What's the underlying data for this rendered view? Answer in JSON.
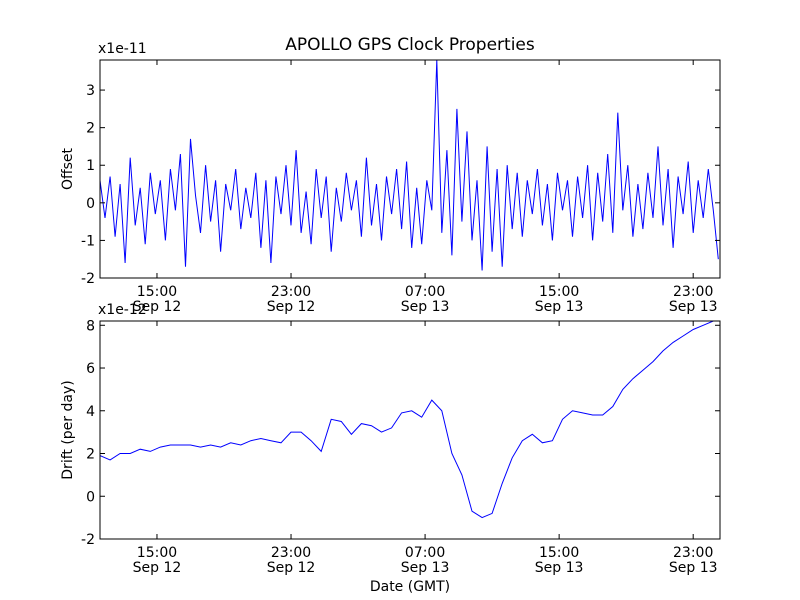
{
  "figure": {
    "title": "APOLLO GPS Clock Properties",
    "line_color": "#0000ff"
  },
  "chart_data": [
    {
      "type": "line",
      "ylabel": "Offset",
      "xlabel": "",
      "multiplier": "x1e-11",
      "ylim": [
        -2,
        3.8
      ],
      "yticks": [
        -2,
        -1,
        0,
        1,
        2,
        3
      ],
      "x_unit": "hours since Sep 12 00:00 GMT",
      "xlim": [
        11.6,
        48.6
      ],
      "xticks": [
        {
          "x": 15,
          "time": "15:00",
          "date": "Sep 12"
        },
        {
          "x": 23,
          "time": "23:00",
          "date": "Sep 12"
        },
        {
          "x": 31,
          "time": "07:00",
          "date": "Sep 13"
        },
        {
          "x": 39,
          "time": "15:00",
          "date": "Sep 13"
        },
        {
          "x": 47,
          "time": "23:00",
          "date": "Sep 13"
        }
      ],
      "series": [
        {
          "x": [
            11.6,
            11.9,
            12.2,
            12.5,
            12.8,
            13.1,
            13.4,
            13.7,
            14.0,
            14.3,
            14.6,
            14.9,
            15.2,
            15.5,
            15.8,
            16.1,
            16.4,
            16.7,
            17.0,
            17.3,
            17.6,
            17.9,
            18.2,
            18.5,
            18.8,
            19.1,
            19.4,
            19.7,
            20.0,
            20.3,
            20.6,
            20.9,
            21.2,
            21.5,
            21.8,
            22.1,
            22.4,
            22.7,
            23.0,
            23.3,
            23.6,
            23.9,
            24.2,
            24.5,
            24.8,
            25.1,
            25.4,
            25.7,
            26.0,
            26.3,
            26.6,
            26.9,
            27.2,
            27.5,
            27.8,
            28.1,
            28.4,
            28.7,
            29.0,
            29.3,
            29.6,
            29.9,
            30.2,
            30.5,
            30.8,
            31.1,
            31.4,
            31.7,
            32.0,
            32.3,
            32.6,
            32.9,
            33.2,
            33.5,
            33.8,
            34.1,
            34.4,
            34.7,
            35.0,
            35.3,
            35.6,
            35.9,
            36.2,
            36.5,
            36.8,
            37.1,
            37.4,
            37.7,
            38.0,
            38.3,
            38.6,
            38.9,
            39.2,
            39.5,
            39.8,
            40.1,
            40.4,
            40.7,
            41.0,
            41.3,
            41.6,
            41.9,
            42.2,
            42.5,
            42.8,
            43.1,
            43.4,
            43.7,
            44.0,
            44.3,
            44.6,
            44.9,
            45.2,
            45.5,
            45.8,
            46.1,
            46.4,
            46.7,
            47.0,
            47.3,
            47.6,
            47.9,
            48.2,
            48.5
          ],
          "values": [
            0.6,
            -0.4,
            0.7,
            -0.9,
            0.5,
            -1.6,
            1.2,
            -0.6,
            0.4,
            -1.1,
            0.8,
            -0.3,
            0.6,
            -1.0,
            0.9,
            -0.2,
            1.3,
            -1.7,
            1.7,
            0.2,
            -0.8,
            1.0,
            -0.5,
            0.6,
            -1.3,
            0.5,
            -0.2,
            0.9,
            -0.7,
            0.4,
            -0.4,
            0.8,
            -1.2,
            0.6,
            -1.6,
            0.7,
            -0.3,
            1.0,
            -0.6,
            1.4,
            -0.8,
            0.3,
            -1.1,
            0.9,
            -0.4,
            0.7,
            -1.3,
            0.4,
            -0.5,
            0.8,
            -0.2,
            0.6,
            -0.9,
            1.2,
            -0.6,
            0.5,
            -1.0,
            0.7,
            -0.3,
            0.9,
            -0.7,
            1.1,
            -1.2,
            0.4,
            -1.1,
            0.6,
            -0.2,
            3.8,
            -0.8,
            1.4,
            -1.4,
            2.5,
            -0.5,
            1.9,
            -1.0,
            0.6,
            -1.8,
            1.5,
            -1.3,
            0.9,
            -1.7,
            1.0,
            -0.7,
            0.8,
            -0.9,
            0.6,
            -0.3,
            0.9,
            -0.6,
            0.5,
            -1.0,
            0.8,
            -0.2,
            0.6,
            -0.9,
            0.7,
            -0.4,
            1.0,
            -1.0,
            0.8,
            -0.5,
            1.3,
            -0.8,
            2.4,
            -0.2,
            1.0,
            -0.9,
            0.5,
            -0.7,
            0.8,
            -0.4,
            1.5,
            -0.6,
            0.9,
            -1.2,
            0.7,
            -0.3,
            1.1,
            -0.8,
            0.6,
            -0.4,
            0.9,
            -0.2,
            -1.5
          ]
        }
      ]
    },
    {
      "type": "line",
      "ylabel": "Drift (per day)",
      "xlabel": "Date (GMT)",
      "multiplier": "x1e-12",
      "ylim": [
        -2,
        8.2
      ],
      "yticks": [
        -2,
        0,
        2,
        4,
        6,
        8
      ],
      "x_unit": "hours since Sep 12 00:00 GMT",
      "xlim": [
        11.6,
        48.6
      ],
      "xticks": [
        {
          "x": 15,
          "time": "15:00",
          "date": "Sep 12"
        },
        {
          "x": 23,
          "time": "23:00",
          "date": "Sep 12"
        },
        {
          "x": 31,
          "time": "07:00",
          "date": "Sep 13"
        },
        {
          "x": 39,
          "time": "15:00",
          "date": "Sep 13"
        },
        {
          "x": 47,
          "time": "23:00",
          "date": "Sep 13"
        }
      ],
      "series": [
        {
          "x": [
            11.6,
            12.2,
            12.8,
            13.4,
            14.0,
            14.6,
            15.2,
            15.8,
            16.4,
            17.0,
            17.6,
            18.2,
            18.8,
            19.4,
            20.0,
            20.6,
            21.2,
            21.8,
            22.4,
            23.0,
            23.6,
            24.2,
            24.8,
            25.4,
            26.0,
            26.6,
            27.2,
            27.8,
            28.4,
            29.0,
            29.6,
            30.2,
            30.8,
            31.4,
            32.0,
            32.6,
            33.2,
            33.8,
            34.4,
            35.0,
            35.6,
            36.2,
            36.8,
            37.4,
            38.0,
            38.6,
            39.2,
            39.8,
            40.4,
            41.0,
            41.6,
            42.2,
            42.8,
            43.4,
            44.0,
            44.6,
            45.2,
            45.8,
            46.4,
            47.0,
            47.6,
            48.2,
            48.6
          ],
          "values": [
            1.9,
            1.7,
            2.0,
            2.0,
            2.2,
            2.1,
            2.3,
            2.4,
            2.4,
            2.4,
            2.3,
            2.4,
            2.3,
            2.5,
            2.4,
            2.6,
            2.7,
            2.6,
            2.5,
            3.0,
            3.0,
            2.6,
            2.1,
            3.6,
            3.5,
            2.9,
            3.4,
            3.3,
            3.0,
            3.2,
            3.9,
            4.0,
            3.7,
            4.5,
            4.0,
            2.0,
            1.0,
            -0.7,
            -1.0,
            -0.8,
            0.6,
            1.8,
            2.6,
            2.9,
            2.5,
            2.6,
            3.6,
            4.0,
            3.9,
            3.8,
            3.8,
            4.2,
            5.0,
            5.5,
            5.9,
            6.3,
            6.8,
            7.2,
            7.5,
            7.8,
            8.0,
            8.2,
            8.2
          ]
        }
      ]
    }
  ]
}
